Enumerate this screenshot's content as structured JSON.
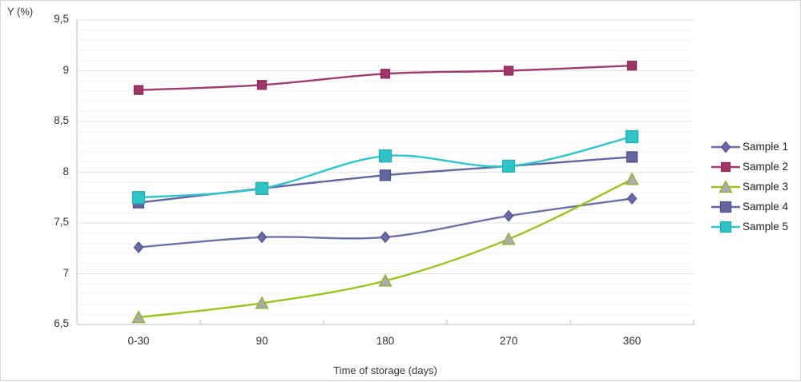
{
  "chart_data": {
    "type": "line",
    "title": "",
    "xlabel": "Time of storage (days)",
    "ylabel": "Y (%)",
    "categories": [
      "0-30",
      "90",
      "180",
      "270",
      "360"
    ],
    "series": [
      {
        "name": "Sample 1",
        "marker": "diamond",
        "color": "#7070A8",
        "marker_fill": "#6A6AA5",
        "marker_stroke": "#55558C",
        "marker_size": 11,
        "values": [
          7.26,
          7.36,
          7.36,
          7.57,
          7.74
        ]
      },
      {
        "name": "Sample 2",
        "marker": "square",
        "color": "#A23A6C",
        "marker_fill": "#A03568",
        "marker_stroke": "#8A2C5B",
        "marker_size": 11,
        "values": [
          8.81,
          8.86,
          8.97,
          9.0,
          9.05
        ]
      },
      {
        "name": "Sample 3",
        "marker": "triangle",
        "color": "#99C21E",
        "marker_fill": "#ABABAB",
        "marker_stroke": "#8CB22C",
        "marker_size": 13,
        "values": [
          6.57,
          6.71,
          6.93,
          7.34,
          7.93
        ]
      },
      {
        "name": "Sample 4",
        "marker": "square",
        "color": "#6464A0",
        "marker_fill": "#6464A0",
        "marker_stroke": "#515186",
        "marker_size": 13,
        "values": [
          7.7,
          7.84,
          7.97,
          8.06,
          8.15
        ]
      },
      {
        "name": "Sample 5",
        "marker": "square",
        "color": "#2FC5C9",
        "marker_fill": "#30C4C8",
        "marker_stroke": "#28AAAE",
        "marker_size": 15,
        "values": [
          7.75,
          7.84,
          8.16,
          8.06,
          8.35
        ]
      }
    ],
    "ylim": [
      6.5,
      9.5
    ],
    "y_major_step": 0.5,
    "y_minor_step": 0.1,
    "y_ticks": [
      9.5,
      9.0,
      8.5,
      8.0,
      7.5,
      7.0,
      6.5
    ],
    "y_tick_labels": [
      "9,5",
      "9",
      "8,5",
      "8",
      "7,5",
      "7",
      "6,5"
    ],
    "legend_position": "right",
    "grid": "horizontal-major-and-minor",
    "smooth": true,
    "colors": {
      "minor_grid": "#F3F3F3",
      "major_grid": "#E2E2E2",
      "axis_line": "#BFBFBF",
      "text": "#333333",
      "background": "#FFFFFF"
    }
  }
}
